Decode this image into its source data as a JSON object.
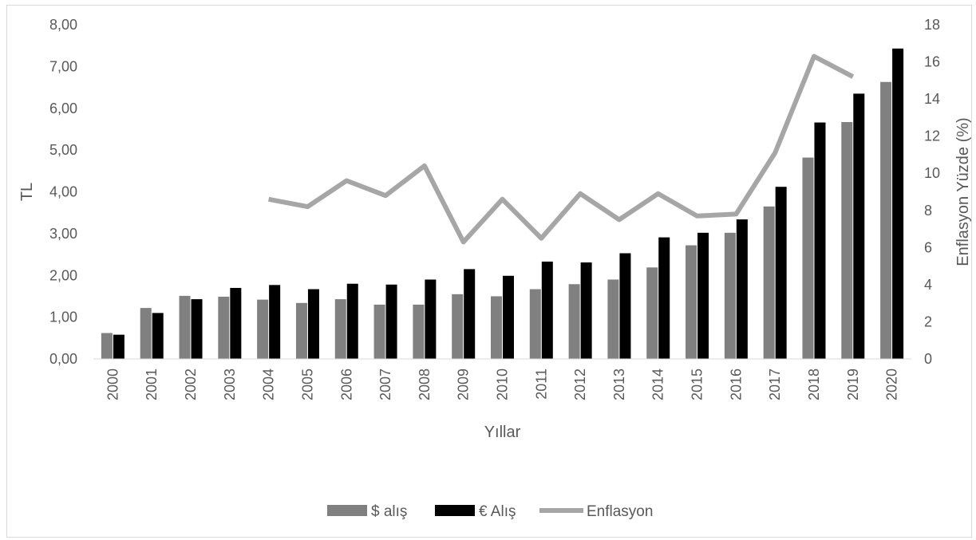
{
  "chart_data": {
    "type": "bar",
    "categories": [
      "2000",
      "2001",
      "2002",
      "2003",
      "2004",
      "2005",
      "2006",
      "2007",
      "2008",
      "2009",
      "2010",
      "2011",
      "2012",
      "2013",
      "2014",
      "2015",
      "2016",
      "2017",
      "2018",
      "2019",
      "2020"
    ],
    "series": [
      {
        "name": "$ alış",
        "kind": "bar",
        "axis": "left",
        "color": "#808080",
        "values": [
          0.62,
          1.22,
          1.51,
          1.49,
          1.42,
          1.34,
          1.43,
          1.3,
          1.3,
          1.55,
          1.5,
          1.67,
          1.79,
          1.9,
          2.19,
          2.72,
          3.02,
          3.65,
          4.82,
          5.67,
          6.63
        ]
      },
      {
        "name": "€ Alış",
        "kind": "bar",
        "axis": "left",
        "color": "#000000",
        "values": [
          0.58,
          1.1,
          1.43,
          1.7,
          1.77,
          1.67,
          1.8,
          1.78,
          1.9,
          2.15,
          1.99,
          2.33,
          2.31,
          2.53,
          2.91,
          3.02,
          3.34,
          4.12,
          5.66,
          6.35,
          7.43
        ]
      },
      {
        "name": "Enflasyon",
        "kind": "line",
        "axis": "right",
        "color": "#a6a6a6",
        "values": [
          null,
          null,
          null,
          null,
          8.6,
          8.2,
          9.6,
          8.8,
          10.4,
          6.3,
          8.6,
          6.5,
          8.9,
          7.5,
          8.9,
          7.7,
          7.8,
          11.1,
          16.3,
          15.2,
          null
        ]
      }
    ],
    "xlabel": "Yıllar",
    "ylabel": "TL",
    "y2label": "Enflasyon Yüzde (%)",
    "ylim": [
      0,
      8
    ],
    "y2lim": [
      0,
      18
    ],
    "yticks": [
      "0,00",
      "1,00",
      "2,00",
      "3,00",
      "4,00",
      "5,00",
      "6,00",
      "7,00",
      "8,00"
    ],
    "y2ticks": [
      "0",
      "2",
      "4",
      "6",
      "8",
      "10",
      "12",
      "14",
      "16",
      "18"
    ],
    "grid": false,
    "legend_position": "bottom"
  }
}
